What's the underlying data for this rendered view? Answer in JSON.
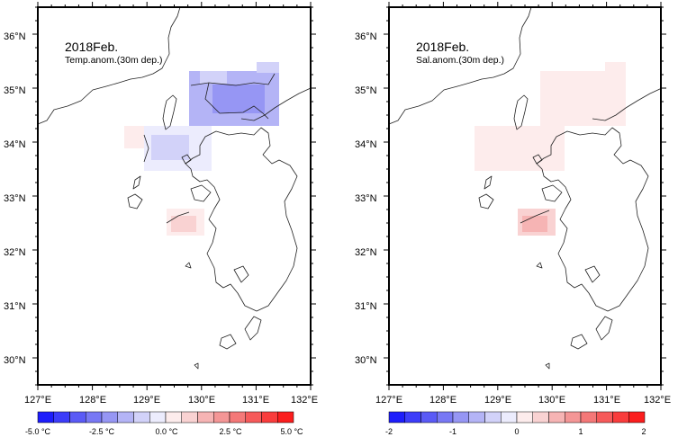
{
  "panels": [
    {
      "id": "temp",
      "title": "2018Feb.",
      "subtitle": "Temp.anom.(30m dep.)",
      "lat_labels": [
        "36°N",
        "35°N",
        "34°N",
        "33°N",
        "32°N",
        "31°N",
        "30°N"
      ],
      "lon_labels": [
        "127°E",
        "128°E",
        "129°E",
        "130°E",
        "131°E",
        "132°E"
      ],
      "colorbar_labels": [
        "-5.0 °C",
        "-2.5 °C",
        "0.0 °C",
        "2.5 °C",
        "5.0 °C"
      ]
    },
    {
      "id": "sal",
      "title": "2018Feb.",
      "subtitle": "Sal.anom.(30m dep.)",
      "lat_labels": [
        "36°N",
        "35°N",
        "34°N",
        "33°N",
        "32°N",
        "31°N",
        "30°N"
      ],
      "lon_labels": [
        "127°E",
        "128°E",
        "129°E",
        "130°E",
        "131°E",
        "132°E"
      ],
      "colorbar_labels": [
        "-2",
        "-1",
        "0",
        "1",
        "2"
      ]
    }
  ],
  "map_extent": {
    "lon_min": 127,
    "lon_max": 132,
    "lat_min": 29.5,
    "lat_max": 36.5
  },
  "colorbar_colors": [
    "#1d1dfb",
    "#3c3cf9",
    "#5a5af6",
    "#7878f4",
    "#9696f4",
    "#b4b4f6",
    "#d2d2f9",
    "#ececfd",
    "#fdecec",
    "#f9d2d2",
    "#f6b4b4",
    "#f49696",
    "#f47878",
    "#f65a5a",
    "#f93c3c",
    "#fb1d1d"
  ]
}
